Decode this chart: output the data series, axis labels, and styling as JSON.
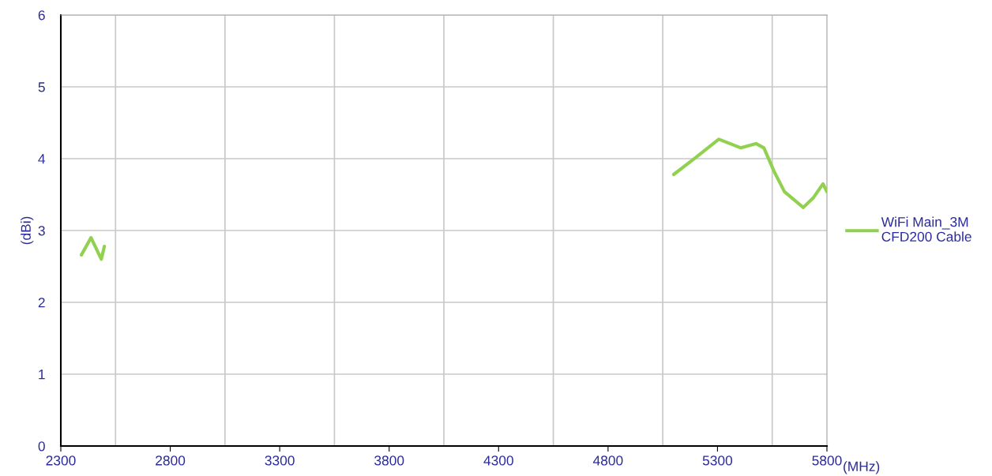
{
  "chart_data": {
    "type": "line",
    "xlabel": "(MHz)",
    "ylabel": "(dBi)",
    "x": [
      2394,
      2438,
      2485,
      2499,
      3800,
      5100,
      5198,
      5306,
      5407,
      5476,
      5512,
      5559,
      5606,
      5692,
      5739,
      5782,
      5800
    ],
    "series": [
      {
        "name": "WiFi Main_3M\nCFD200 Cable",
        "color": "#92d050",
        "values": [
          2.66,
          2.9,
          2.6,
          2.78,
          null,
          3.78,
          4.01,
          4.27,
          4.15,
          4.21,
          4.15,
          3.82,
          3.54,
          3.32,
          3.46,
          3.65,
          3.54
        ]
      }
    ],
    "xlim": [
      2300,
      5800
    ],
    "xticks": [
      2300,
      {
        "value": 2550,
        "label": null
      },
      2800,
      {
        "value": 3050,
        "label": null
      },
      3300,
      {
        "value": 3550,
        "label": null
      },
      3800,
      {
        "value": 4050,
        "label": null
      },
      4300,
      {
        "value": 4550,
        "label": null
      },
      4800,
      {
        "value": 5050,
        "label": null
      },
      5300,
      {
        "value": 5550,
        "label": null
      },
      5800
    ],
    "ylim": [
      0,
      6
    ],
    "yticks": [
      0,
      1,
      2,
      3,
      4,
      5,
      6
    ],
    "grid": true,
    "legend": "right",
    "marker": "none",
    "line_style": "solid"
  }
}
